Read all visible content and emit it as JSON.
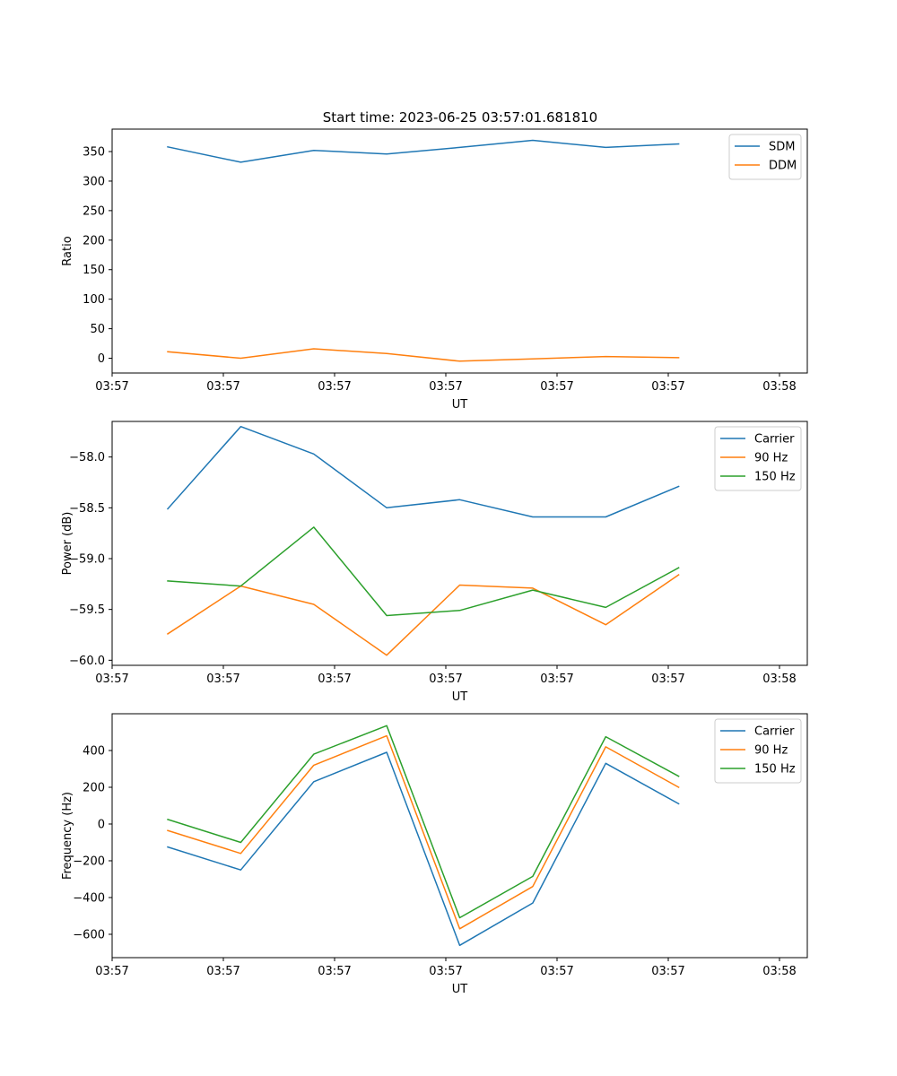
{
  "figure_title": "Start time: 2023-06-25 03:57:01.681810",
  "colors": {
    "c0": "#1f77b4",
    "c1": "#ff7f0e",
    "c2": "#2ca02c",
    "axis": "#000000",
    "legend_border": "#cccccc"
  },
  "chart_data": [
    {
      "type": "line",
      "xlabel": "UT",
      "ylabel": "Ratio",
      "xlim": [
        0,
        10
      ],
      "ylim": [
        -25,
        388
      ],
      "x_ticks": [
        0,
        1.6,
        3.2,
        4.8,
        6.4,
        8.0,
        9.6
      ],
      "x_tick_labels": [
        "03:57",
        "03:57",
        "03:57",
        "03:57",
        "03:57",
        "03:57",
        "03:58"
      ],
      "y_ticks": [
        0,
        50,
        100,
        150,
        200,
        250,
        300,
        350
      ],
      "y_tick_labels": [
        "0",
        "50",
        "100",
        "150",
        "200",
        "250",
        "300",
        "350"
      ],
      "legend_position": "upper right",
      "x": [
        0.8,
        1.85,
        2.9,
        3.95,
        5.0,
        6.05,
        7.1,
        8.15
      ],
      "series": [
        {
          "name": "SDM",
          "color_key": "c0",
          "values": [
            358,
            332,
            352,
            346,
            357,
            369,
            357,
            363
          ]
        },
        {
          "name": "DDM",
          "color_key": "c1",
          "values": [
            11,
            0,
            16,
            8,
            -5,
            -1,
            3,
            1
          ]
        }
      ]
    },
    {
      "type": "line",
      "xlabel": "UT",
      "ylabel": "Power (dB)",
      "xlim": [
        0,
        10
      ],
      "ylim": [
        -60.05,
        -57.65
      ],
      "x_ticks": [
        0,
        1.6,
        3.2,
        4.8,
        6.4,
        8.0,
        9.6
      ],
      "x_tick_labels": [
        "03:57",
        "03:57",
        "03:57",
        "03:57",
        "03:57",
        "03:57",
        "03:58"
      ],
      "y_ticks": [
        -60.0,
        -59.5,
        -59.0,
        -58.5,
        -58.0
      ],
      "y_tick_labels": [
        "−60.0",
        "−59.5",
        "−59.0",
        "−58.5",
        "−58.0"
      ],
      "legend_position": "upper right",
      "x": [
        0.8,
        1.85,
        2.9,
        3.95,
        5.0,
        6.05,
        7.1,
        8.15
      ],
      "series": [
        {
          "name": "Carrier",
          "color_key": "c0",
          "values": [
            -58.51,
            -57.7,
            -57.97,
            -58.5,
            -58.42,
            -58.59,
            -58.59,
            -58.29
          ]
        },
        {
          "name": "90 Hz",
          "color_key": "c1",
          "values": [
            -59.74,
            -59.27,
            -59.45,
            -59.95,
            -59.26,
            -59.29,
            -59.65,
            -59.16
          ]
        },
        {
          "name": "150 Hz",
          "color_key": "c2",
          "values": [
            -59.22,
            -59.27,
            -58.69,
            -59.56,
            -59.51,
            -59.31,
            -59.48,
            -59.09
          ]
        }
      ]
    },
    {
      "type": "line",
      "xlabel": "UT",
      "ylabel": "Frequency (Hz)",
      "xlim": [
        0,
        10
      ],
      "ylim": [
        -727,
        600
      ],
      "x_ticks": [
        0,
        1.6,
        3.2,
        4.8,
        6.4,
        8.0,
        9.6
      ],
      "x_tick_labels": [
        "03:57",
        "03:57",
        "03:57",
        "03:57",
        "03:57",
        "03:57",
        "03:58"
      ],
      "y_ticks": [
        -600,
        -400,
        -200,
        0,
        200,
        400
      ],
      "y_tick_labels": [
        "−600",
        "−400",
        "−200",
        "0",
        "200",
        "400"
      ],
      "legend_position": "upper right",
      "x": [
        0.8,
        1.85,
        2.9,
        3.95,
        5.0,
        6.05,
        7.1,
        8.15
      ],
      "series": [
        {
          "name": "Carrier",
          "color_key": "c0",
          "values": [
            -125,
            -250,
            230,
            390,
            -660,
            -430,
            330,
            110
          ]
        },
        {
          "name": "90 Hz",
          "color_key": "c1",
          "values": [
            -35,
            -160,
            320,
            480,
            -570,
            -340,
            420,
            200
          ]
        },
        {
          "name": "150 Hz",
          "color_key": "c2",
          "values": [
            25,
            -100,
            380,
            535,
            -510,
            -285,
            475,
            260
          ]
        }
      ]
    }
  ]
}
